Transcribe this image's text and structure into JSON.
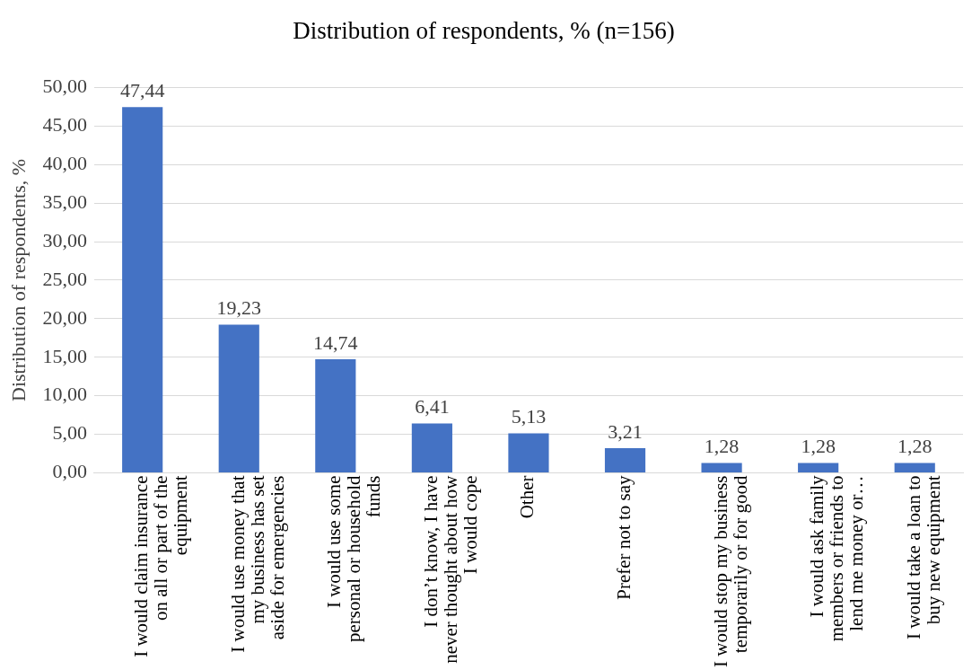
{
  "chart_data": {
    "type": "bar",
    "title": "Distribution of respondents, % (n=156)",
    "ylabel": "Distribution of respondents, %",
    "categories": [
      "I would claim insurance on all or part of the equipment",
      "I would use money that my business has set aside for emergencies",
      "I would use some personal or household funds",
      "I don’t know, I have never thought about how I would cope",
      "Other",
      "Prefer not to say",
      "I would stop my business temporarily or for good",
      "I would ask family members or friends to lend me money or…",
      "I would take a loan to buy new equipment"
    ],
    "values": [
      47.44,
      19.23,
      14.74,
      6.41,
      5.13,
      3.21,
      1.28,
      1.28,
      1.28
    ],
    "value_labels": [
      "47,44",
      "19,23",
      "14,74",
      "6,41",
      "5,13",
      "3,21",
      "1,28",
      "1,28",
      "1,28"
    ],
    "color": "#4472c4",
    "ylim": [
      0,
      50
    ],
    "yticks": [
      {
        "value": 0,
        "label": "0,00"
      },
      {
        "value": 5,
        "label": "5,00"
      },
      {
        "value": 10,
        "label": "10,00"
      },
      {
        "value": 15,
        "label": "15,00"
      },
      {
        "value": 20,
        "label": "20,00"
      },
      {
        "value": 25,
        "label": "25,00"
      },
      {
        "value": 30,
        "label": "30,00"
      },
      {
        "value": 35,
        "label": "35,00"
      },
      {
        "value": 40,
        "label": "40,00"
      },
      {
        "value": 45,
        "label": "45,00"
      },
      {
        "value": 50,
        "label": "50,00"
      }
    ],
    "grid": "y"
  }
}
